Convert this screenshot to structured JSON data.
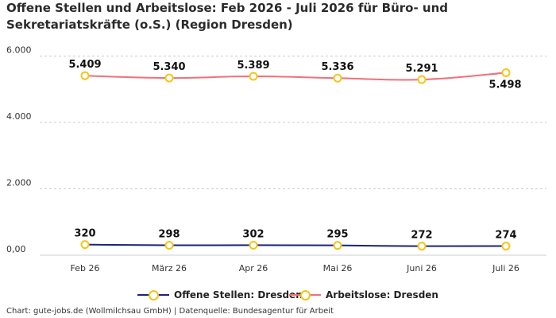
{
  "title": "Offene Stellen und Arbeitslose: Feb 2026 - Juli 2026 für Büro- und Sekretariatskräfte (o.S.) (Region Dresden)",
  "source": "Chart: gute-jobs.de (Wollmilchsau GmbH) | Datenquelle: Bundesagentur für Arbeit",
  "colors": {
    "offene_stellen": "#1a237e",
    "arbeitslose": "#f0707a",
    "marker_border": "#f5c518",
    "grid": "#cccccc"
  },
  "chart_data": {
    "type": "line",
    "title": "Offene Stellen und Arbeitslose: Feb 2026 - Juli 2026 für Büro- und Sekretariatskräfte (o.S.) (Region Dresden)",
    "categories": [
      "Feb 26",
      "März 26",
      "Apr 26",
      "Mai 26",
      "Juni 26",
      "Juli 26"
    ],
    "y_ticks": [
      "0,00",
      "2.000",
      "4.000",
      "6.000"
    ],
    "y_tick_values": [
      0,
      2000,
      4000,
      6000
    ],
    "ylim": [
      0,
      6300
    ],
    "grid": true,
    "legend_position": "bottom",
    "series": [
      {
        "name": "Offene Stellen: Dresden",
        "values": [
          320,
          298,
          302,
          295,
          272,
          274
        ],
        "labels": [
          "320",
          "298",
          "302",
          "295",
          "272",
          "274"
        ],
        "color": "#1a237e"
      },
      {
        "name": "Arbeitslose: Dresden",
        "values": [
          5409,
          5340,
          5389,
          5336,
          5291,
          5498
        ],
        "labels": [
          "5.409",
          "5.340",
          "5.389",
          "5.336",
          "5.291",
          "5.498"
        ],
        "color": "#f0707a"
      }
    ]
  }
}
